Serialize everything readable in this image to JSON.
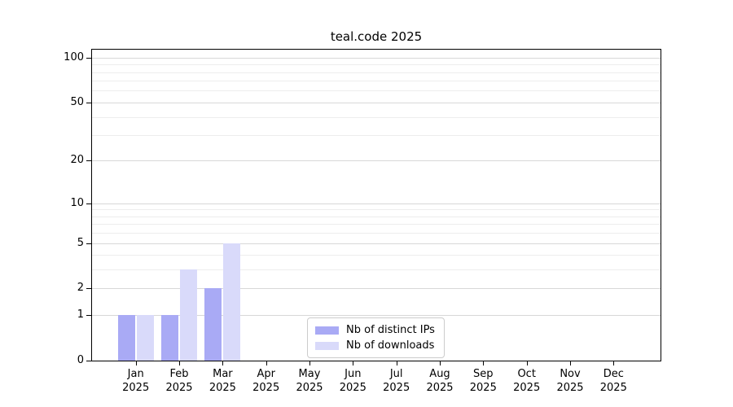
{
  "chart_data": {
    "type": "bar",
    "title": "teal.code 2025",
    "categories": [
      "Jan",
      "Feb",
      "Mar",
      "Apr",
      "May",
      "Jun",
      "Jul",
      "Aug",
      "Sep",
      "Oct",
      "Nov",
      "Dec"
    ],
    "category_year": "2025",
    "series": [
      {
        "name": "Nb of distinct IPs",
        "color": "#a9aaf5",
        "values": [
          1,
          1,
          2,
          0,
          0,
          0,
          0,
          0,
          0,
          0,
          0,
          0
        ]
      },
      {
        "name": "Nb of downloads",
        "color": "#d9dafa",
        "values": [
          1,
          3,
          5,
          0,
          0,
          0,
          0,
          0,
          0,
          0,
          0,
          0
        ]
      }
    ],
    "yaxis": {
      "scale": "log1p",
      "max_value": 113,
      "major_ticks": [
        100,
        50,
        20,
        10,
        5,
        2,
        1,
        0
      ],
      "minor_ticks": [
        90,
        80,
        70,
        60,
        40,
        30,
        9,
        8,
        7,
        6,
        4,
        3
      ]
    },
    "xlabel": "",
    "ylabel": "",
    "grid": "horizontal-only",
    "legend_position": "bottom-center"
  },
  "colors": {
    "major_grid": "#d8d8d8",
    "minor_grid": "#ededed",
    "spine": "#000000",
    "legend_border": "#cccccc",
    "text": "#000000"
  }
}
